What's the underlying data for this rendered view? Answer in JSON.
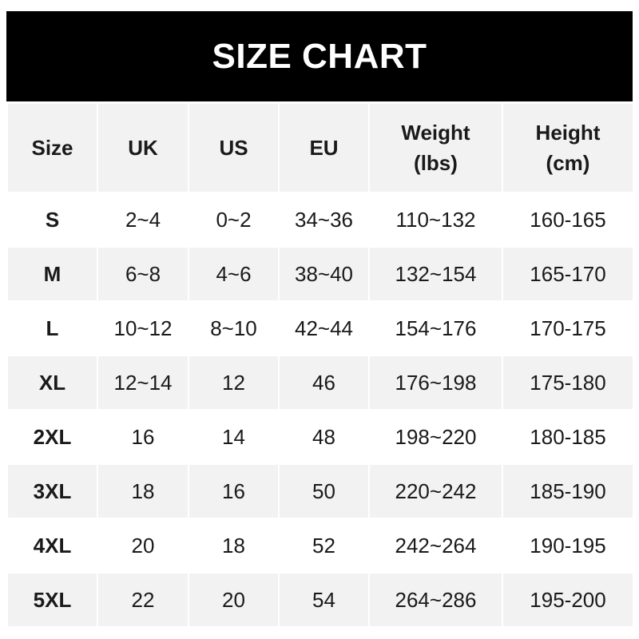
{
  "title": "SIZE CHART",
  "headers": [
    {
      "line1": "Size",
      "line2": ""
    },
    {
      "line1": "UK",
      "line2": ""
    },
    {
      "line1": "US",
      "line2": ""
    },
    {
      "line1": "EU",
      "line2": ""
    },
    {
      "line1": "Weight",
      "line2": "(lbs)"
    },
    {
      "line1": "Height",
      "line2": "(cm)"
    }
  ],
  "rows": [
    [
      "S",
      "2~4",
      "0~2",
      "34~36",
      "110~132",
      "160-165"
    ],
    [
      "M",
      "6~8",
      "4~6",
      "38~40",
      "132~154",
      "165-170"
    ],
    [
      "L",
      "10~12",
      "8~10",
      "42~44",
      "154~176",
      "170-175"
    ],
    [
      "XL",
      "12~14",
      "12",
      "46",
      "176~198",
      "175-180"
    ],
    [
      "2XL",
      "16",
      "14",
      "48",
      "198~220",
      "180-185"
    ],
    [
      "3XL",
      "18",
      "16",
      "50",
      "220~242",
      "185-190"
    ],
    [
      "4XL",
      "20",
      "18",
      "52",
      "242~264",
      "190-195"
    ],
    [
      "5XL",
      "22",
      "20",
      "54",
      "264~286",
      "195-200"
    ]
  ],
  "colors": {
    "title_bg": "#000000",
    "stripe": "#f2f2f2",
    "text": "#1a1a1a"
  }
}
